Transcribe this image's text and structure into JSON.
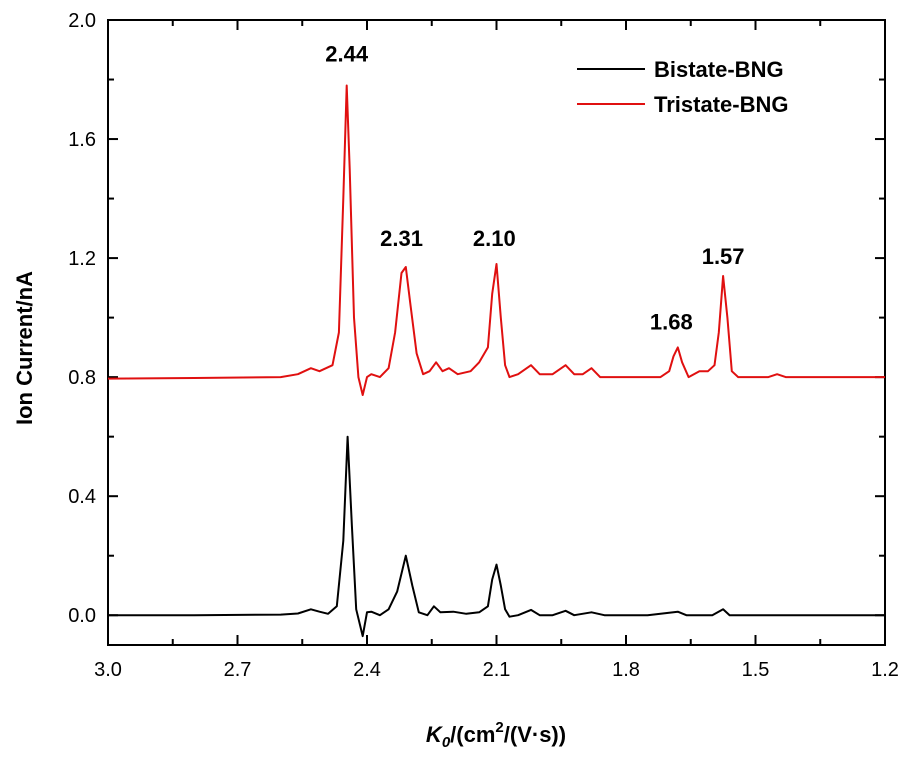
{
  "chart_data": {
    "type": "line",
    "xlabel_main": "K",
    "xlabel_sub": "0",
    "xlabel_mid": "/(cm",
    "xlabel_sup": "2",
    "xlabel_end": "/(V·s))",
    "ylabel": "Ion Current/nA",
    "xlim": [
      3.0,
      1.2
    ],
    "ylim": [
      -0.1,
      2.0
    ],
    "x_reversed": true,
    "xticks": [
      "3.0",
      "2.7",
      "2.4",
      "2.1",
      "1.8",
      "1.5",
      "1.2"
    ],
    "yticks": [
      "0.0",
      "0.4",
      "0.8",
      "1.2",
      "1.6",
      "2.0"
    ],
    "grid": false,
    "legend_position": "top-right",
    "series": [
      {
        "name": "Bistate-BNG",
        "color": "#000000",
        "baseline": 0.0,
        "points": [
          [
            3.0,
            0.0
          ],
          [
            2.8,
            0.0
          ],
          [
            2.6,
            0.002
          ],
          [
            2.56,
            0.006
          ],
          [
            2.53,
            0.02
          ],
          [
            2.51,
            0.012
          ],
          [
            2.49,
            0.005
          ],
          [
            2.47,
            0.03
          ],
          [
            2.455,
            0.25
          ],
          [
            2.445,
            0.6
          ],
          [
            2.435,
            0.3
          ],
          [
            2.425,
            0.02
          ],
          [
            2.41,
            -0.07
          ],
          [
            2.4,
            0.01
          ],
          [
            2.39,
            0.012
          ],
          [
            2.37,
            0.0
          ],
          [
            2.35,
            0.02
          ],
          [
            2.33,
            0.08
          ],
          [
            2.31,
            0.2
          ],
          [
            2.295,
            0.1
          ],
          [
            2.28,
            0.01
          ],
          [
            2.26,
            0.0
          ],
          [
            2.245,
            0.03
          ],
          [
            2.23,
            0.01
          ],
          [
            2.2,
            0.012
          ],
          [
            2.17,
            0.005
          ],
          [
            2.14,
            0.01
          ],
          [
            2.12,
            0.03
          ],
          [
            2.11,
            0.12
          ],
          [
            2.1,
            0.17
          ],
          [
            2.09,
            0.1
          ],
          [
            2.08,
            0.02
          ],
          [
            2.07,
            -0.005
          ],
          [
            2.05,
            0.0
          ],
          [
            2.02,
            0.018
          ],
          [
            2.0,
            0.0
          ],
          [
            1.97,
            0.0
          ],
          [
            1.94,
            0.015
          ],
          [
            1.92,
            0.0
          ],
          [
            1.88,
            0.01
          ],
          [
            1.85,
            0.0
          ],
          [
            1.75,
            0.0
          ],
          [
            1.68,
            0.012
          ],
          [
            1.66,
            0.0
          ],
          [
            1.6,
            0.0
          ],
          [
            1.575,
            0.02
          ],
          [
            1.56,
            0.0
          ],
          [
            1.45,
            0.0
          ],
          [
            1.2,
            0.0
          ]
        ]
      },
      {
        "name": "Tristate-BNG",
        "color": "#e01010",
        "baseline": 0.8,
        "points": [
          [
            3.0,
            0.795
          ],
          [
            2.8,
            0.797
          ],
          [
            2.6,
            0.8
          ],
          [
            2.56,
            0.81
          ],
          [
            2.53,
            0.83
          ],
          [
            2.51,
            0.82
          ],
          [
            2.48,
            0.84
          ],
          [
            2.465,
            0.95
          ],
          [
            2.455,
            1.4
          ],
          [
            2.447,
            1.78
          ],
          [
            2.44,
            1.5
          ],
          [
            2.43,
            1.0
          ],
          [
            2.42,
            0.8
          ],
          [
            2.41,
            0.74
          ],
          [
            2.4,
            0.8
          ],
          [
            2.39,
            0.81
          ],
          [
            2.37,
            0.8
          ],
          [
            2.35,
            0.83
          ],
          [
            2.335,
            0.95
          ],
          [
            2.32,
            1.15
          ],
          [
            2.31,
            1.17
          ],
          [
            2.3,
            1.05
          ],
          [
            2.285,
            0.88
          ],
          [
            2.27,
            0.81
          ],
          [
            2.255,
            0.82
          ],
          [
            2.24,
            0.85
          ],
          [
            2.225,
            0.82
          ],
          [
            2.21,
            0.83
          ],
          [
            2.19,
            0.81
          ],
          [
            2.16,
            0.82
          ],
          [
            2.14,
            0.85
          ],
          [
            2.12,
            0.9
          ],
          [
            2.11,
            1.08
          ],
          [
            2.1,
            1.18
          ],
          [
            2.09,
            1.0
          ],
          [
            2.08,
            0.84
          ],
          [
            2.07,
            0.8
          ],
          [
            2.05,
            0.81
          ],
          [
            2.02,
            0.84
          ],
          [
            2.0,
            0.81
          ],
          [
            1.97,
            0.81
          ],
          [
            1.94,
            0.84
          ],
          [
            1.92,
            0.81
          ],
          [
            1.9,
            0.81
          ],
          [
            1.88,
            0.83
          ],
          [
            1.86,
            0.8
          ],
          [
            1.8,
            0.8
          ],
          [
            1.72,
            0.8
          ],
          [
            1.7,
            0.82
          ],
          [
            1.69,
            0.87
          ],
          [
            1.68,
            0.9
          ],
          [
            1.67,
            0.85
          ],
          [
            1.655,
            0.8
          ],
          [
            1.63,
            0.82
          ],
          [
            1.61,
            0.82
          ],
          [
            1.595,
            0.84
          ],
          [
            1.585,
            0.95
          ],
          [
            1.575,
            1.14
          ],
          [
            1.565,
            1.0
          ],
          [
            1.555,
            0.82
          ],
          [
            1.54,
            0.8
          ],
          [
            1.47,
            0.8
          ],
          [
            1.45,
            0.81
          ],
          [
            1.43,
            0.8
          ],
          [
            1.3,
            0.8
          ],
          [
            1.2,
            0.8
          ]
        ]
      }
    ],
    "annotations": [
      {
        "text": "2.44",
        "x": 2.447,
        "y": 1.86
      },
      {
        "text": "2.31",
        "x": 2.32,
        "y": 1.24
      },
      {
        "text": "2.10",
        "x": 2.105,
        "y": 1.24
      },
      {
        "text": "1.68",
        "x": 1.695,
        "y": 0.96
      },
      {
        "text": "1.57",
        "x": 1.575,
        "y": 1.18
      }
    ]
  }
}
